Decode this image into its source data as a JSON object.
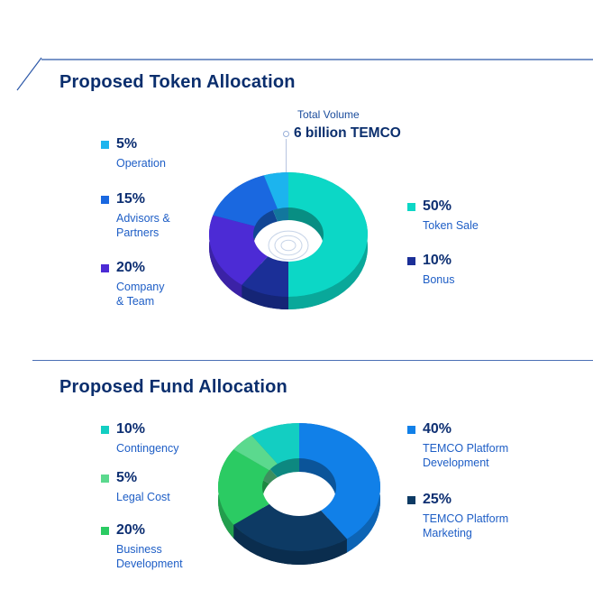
{
  "page": {
    "colors": {
      "background": "#ffffff",
      "title-color": "#0a2e6d",
      "percent-color": "#0d2f72",
      "label-color": "#1e5ec6",
      "annotation-color": "#1a4c9c",
      "rule-color": "#2b57a8"
    }
  },
  "token_section": {
    "title": "Proposed Token Allocation",
    "annotation_label": "Total Volume",
    "annotation_value": "6 billion TEMCO",
    "legend_left": [
      {
        "percent": "5%",
        "label": "Operation"
      },
      {
        "percent": "15%",
        "label": "Advisors &\nPartners"
      },
      {
        "percent": "20%",
        "label": "Company\n& Team"
      }
    ],
    "legend_right": [
      {
        "percent": "50%",
        "label": "Token Sale"
      },
      {
        "percent": "10%",
        "label": "Bonus"
      }
    ]
  },
  "fund_section": {
    "title": "Proposed Fund Allocation",
    "legend_left": [
      {
        "percent": "10%",
        "label": "Contingency"
      },
      {
        "percent": "5%",
        "label": "Legal Cost"
      },
      {
        "percent": "20%",
        "label": "Business\nDevelopment"
      }
    ],
    "legend_right": [
      {
        "percent": "40%",
        "label": "TEMCO Platform\nDevelopment"
      },
      {
        "percent": "25%",
        "label": "TEMCO Platform\nMarketing"
      }
    ]
  },
  "chart_data": [
    {
      "type": "pie",
      "variant": "3d-donut",
      "title": "Proposed Token Allocation",
      "total_label": "Total Volume",
      "total_value": "6 billion TEMCO",
      "unit": "%",
      "start_angle_deg": 0,
      "direction": "clockwise",
      "segments": [
        {
          "label": "Token Sale",
          "value": 50,
          "color": "#0cd7c6"
        },
        {
          "label": "Bonus",
          "value": 10,
          "color": "#1b2f97"
        },
        {
          "label": "Company & Team",
          "value": 20,
          "color": "#4c2bd5"
        },
        {
          "label": "Advisors & Partners",
          "value": 15,
          "color": "#1a68e0"
        },
        {
          "label": "Operation",
          "value": 5,
          "color": "#1cb4ee"
        }
      ]
    },
    {
      "type": "pie",
      "variant": "3d-donut",
      "title": "Proposed Fund Allocation",
      "unit": "%",
      "start_angle_deg": 0,
      "direction": "clockwise",
      "segments": [
        {
          "label": "TEMCO Platform Development",
          "value": 40,
          "color": "#1180e8"
        },
        {
          "label": "TEMCO Platform Marketing",
          "value": 25,
          "color": "#0d3a64"
        },
        {
          "label": "Business Development",
          "value": 20,
          "color": "#2bcb63"
        },
        {
          "label": "Legal Cost",
          "value": 5,
          "color": "#5bd98e"
        },
        {
          "label": "Contingency",
          "value": 10,
          "color": "#13cec2"
        }
      ]
    }
  ]
}
